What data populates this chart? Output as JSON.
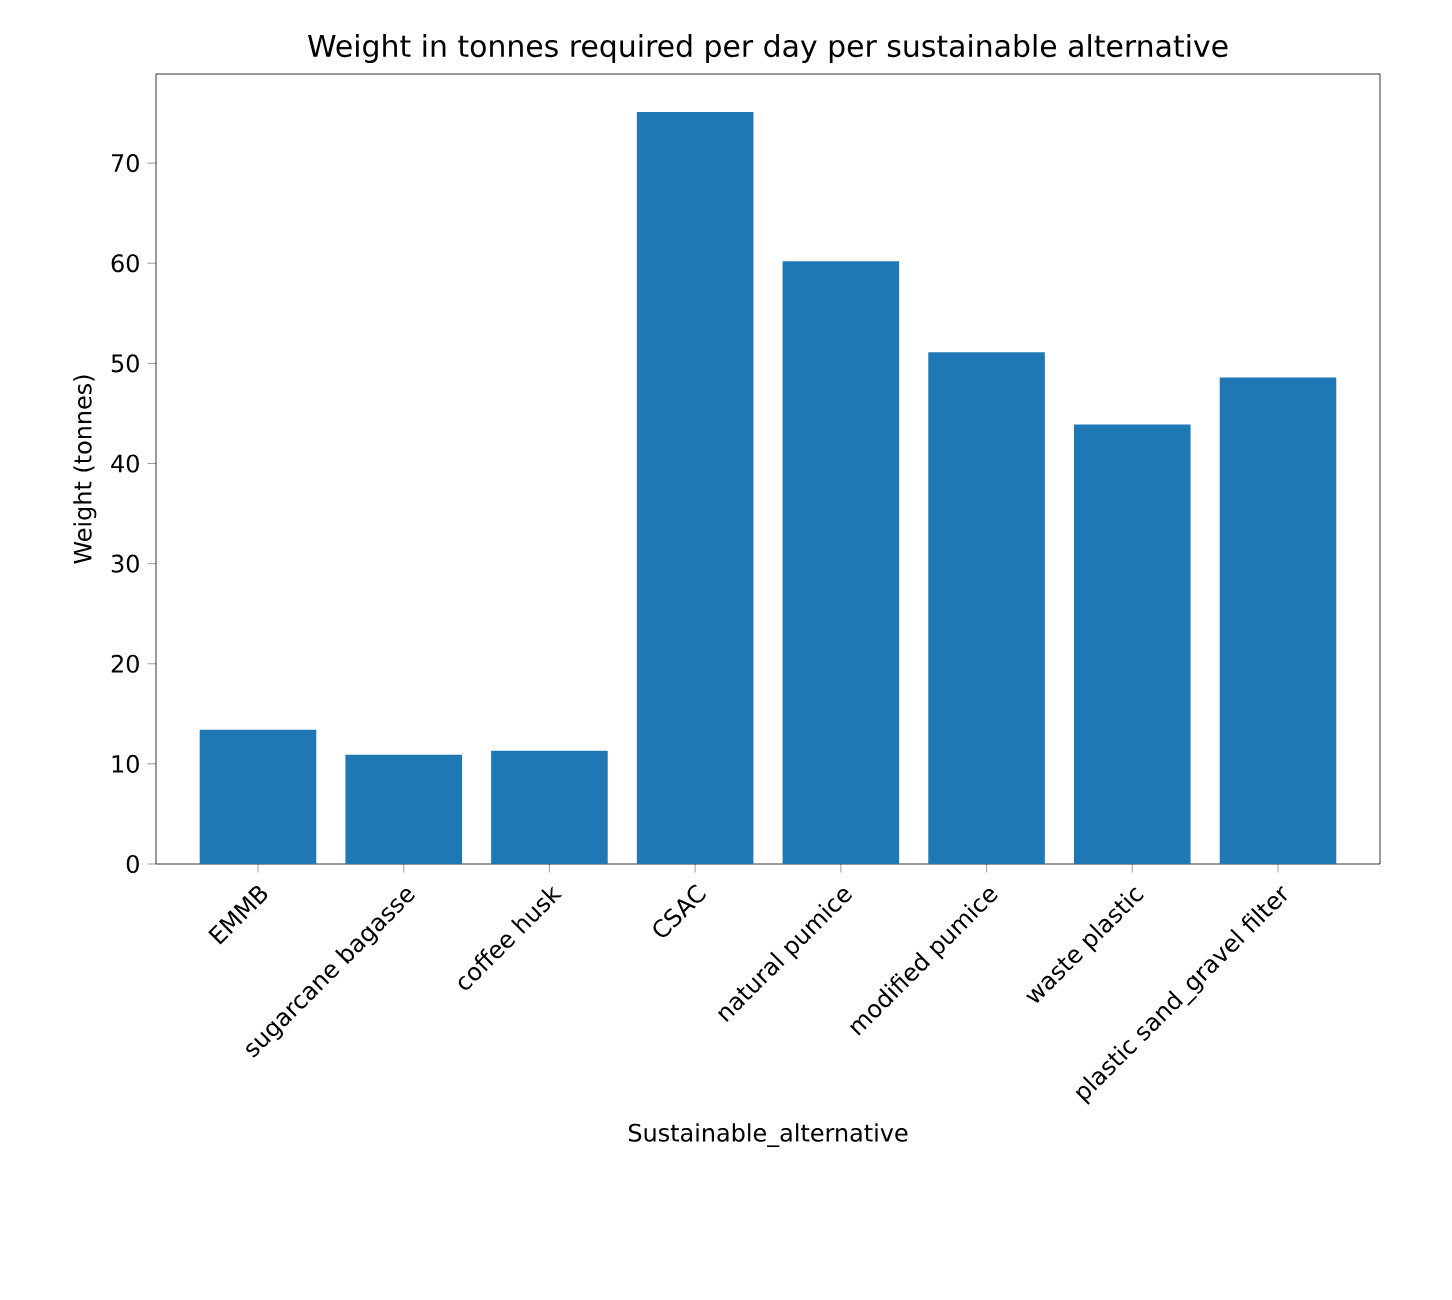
{
  "chart_data": {
    "type": "bar",
    "title": "Weight in tonnes required per day per sustainable alternative",
    "xlabel": "Sustainable_alternative",
    "ylabel": "Weight (tonnes)",
    "categories": [
      "EMMB",
      "sugarcane bagasse",
      "coffee husk",
      "CSAC",
      "natural pumice",
      "modified pumice",
      "waste plastic",
      "plastic sand_gravel filter"
    ],
    "values": [
      13.4,
      10.9,
      11.3,
      75.1,
      60.2,
      51.1,
      43.9,
      48.6
    ],
    "color": "#1f77b4",
    "ylim": [
      0,
      78.9
    ],
    "yticks": [
      0,
      10,
      20,
      30,
      40,
      50,
      60,
      70
    ]
  }
}
